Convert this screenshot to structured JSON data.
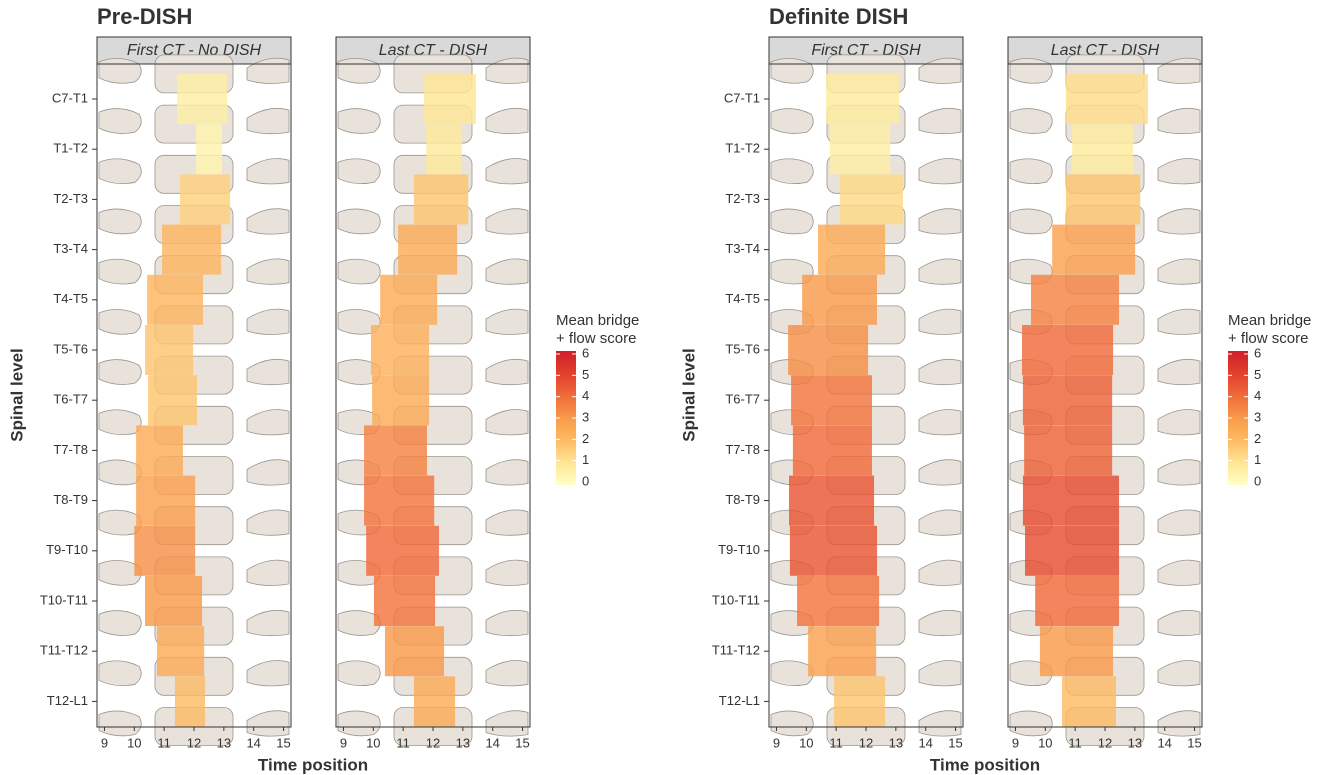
{
  "chart_data": [
    {
      "type": "tile",
      "title": "Pre-DISH",
      "xlabel": "Time position",
      "ylabel": "Spinal level",
      "categories": [
        "C7-T1",
        "T1-T2",
        "T2-T3",
        "T3-T4",
        "T4-T5",
        "T5-T6",
        "T6-T7",
        "T7-T8",
        "T8-T9",
        "T9-T10",
        "T10-T11",
        "T11-T12",
        "T12-L1"
      ],
      "xlim": [
        8.75,
        15.25
      ],
      "xticks": [
        9,
        10,
        11,
        12,
        13,
        14,
        15
      ],
      "legend_title": [
        "Mean bridge",
        "+ flow score"
      ],
      "clim": [
        0,
        6
      ],
      "cticks": [
        0,
        1,
        2,
        3,
        4,
        5,
        6
      ],
      "colors": [
        "#ffffc4",
        "#fee695",
        "#fdbb64",
        "#f99a4a",
        "#f06a3a",
        "#e2402d",
        "#cf1f28"
      ],
      "panels": [
        {
          "title": "First CT - No DISH",
          "xmin": [
            11.43,
            12.07,
            11.53,
            10.93,
            10.43,
            10.36,
            10.46,
            10.06,
            10.06,
            10.0,
            10.36,
            10.76,
            11.36
          ],
          "xmax": [
            13.11,
            12.94,
            13.21,
            12.91,
            12.3,
            11.97,
            12.1,
            11.63,
            12.04,
            12.04,
            12.27,
            12.34,
            12.37
          ],
          "values": [
            0.7,
            0.5,
            1.5,
            2.2,
            2.2,
            1.8,
            1.8,
            2.5,
            2.8,
            3.2,
            3.0,
            2.5,
            2.0
          ]
        },
        {
          "title": "Last CT - DISH",
          "xmin": [
            11.7,
            11.77,
            11.36,
            10.83,
            10.23,
            9.92,
            9.96,
            9.69,
            9.69,
            9.76,
            10.02,
            10.39,
            11.36
          ],
          "xmax": [
            13.44,
            12.97,
            13.18,
            12.81,
            12.14,
            11.87,
            11.87,
            11.8,
            12.04,
            12.2,
            12.07,
            12.37,
            12.74
          ],
          "values": [
            1.0,
            0.9,
            1.8,
            2.5,
            2.5,
            2.3,
            2.5,
            3.5,
            3.8,
            4.0,
            3.8,
            3.0,
            2.5
          ]
        }
      ]
    },
    {
      "type": "tile",
      "title": "Definite DISH",
      "xlabel": "Time position",
      "ylabel": "Spinal level",
      "categories": [
        "C7-T1",
        "T1-T2",
        "T2-T3",
        "T3-T4",
        "T4-T5",
        "T5-T6",
        "T6-T7",
        "T7-T8",
        "T8-T9",
        "T9-T10",
        "T10-T11",
        "T11-T12",
        "T12-L1"
      ],
      "xlim": [
        8.75,
        15.25
      ],
      "xticks": [
        9,
        10,
        11,
        12,
        13,
        14,
        15
      ],
      "legend_title": [
        "Mean bridge",
        "+ flow score"
      ],
      "clim": [
        0,
        6
      ],
      "cticks": [
        0,
        1,
        2,
        3,
        4,
        5,
        6
      ],
      "colors": [
        "#ffffc4",
        "#fee695",
        "#fdbb64",
        "#f99a4a",
        "#f06a3a",
        "#e2402d",
        "#cf1f28"
      ],
      "panels": [
        {
          "title": "First CT - DISH",
          "xmin": [
            10.66,
            10.79,
            11.13,
            10.39,
            9.86,
            9.39,
            9.49,
            9.55,
            9.42,
            9.45,
            9.69,
            10.06,
            10.93
          ],
          "xmax": [
            13.11,
            12.81,
            13.24,
            12.64,
            12.37,
            12.07,
            12.2,
            12.2,
            12.27,
            12.37,
            12.44,
            12.34,
            12.64
          ],
          "values": [
            0.8,
            0.7,
            1.3,
            2.5,
            3.0,
            3.2,
            3.8,
            4.0,
            4.5,
            4.5,
            3.8,
            2.8,
            1.8
          ]
        },
        {
          "title": "Last CT - DISH",
          "xmin": [
            10.69,
            10.9,
            10.69,
            10.23,
            9.52,
            9.22,
            9.25,
            9.29,
            9.25,
            9.32,
            9.66,
            9.82,
            10.56
          ],
          "xmax": [
            13.44,
            12.94,
            13.18,
            13.01,
            12.47,
            12.27,
            12.24,
            12.24,
            12.47,
            12.47,
            12.47,
            12.27,
            12.37
          ],
          "values": [
            1.2,
            0.8,
            1.8,
            2.8,
            3.5,
            4.0,
            4.2,
            4.2,
            4.7,
            4.7,
            4.0,
            3.0,
            2.0
          ]
        }
      ]
    }
  ]
}
